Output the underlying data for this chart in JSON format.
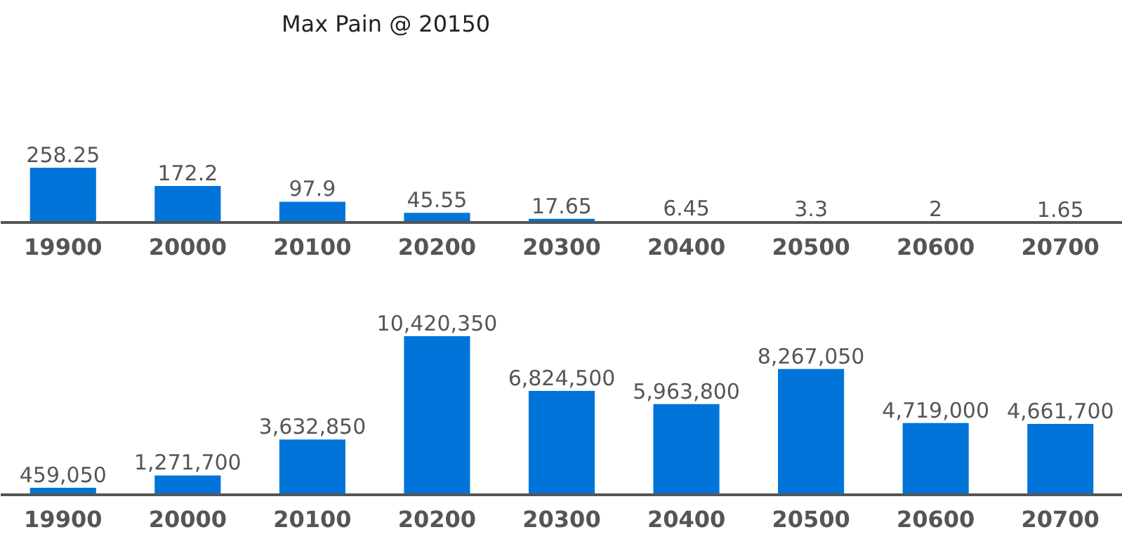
{
  "chart_data": [
    {
      "type": "bar",
      "title": "Max Pain @ 20150",
      "categories": [
        "19900",
        "20000",
        "20100",
        "20200",
        "20300",
        "20400",
        "20500",
        "20600",
        "20700"
      ],
      "values": [
        258.25,
        172.2,
        97.9,
        45.55,
        17.65,
        6.45,
        3.3,
        2,
        1.65
      ],
      "color": "#0074d9",
      "data_labels": true
    },
    {
      "type": "bar",
      "categories": [
        "19900",
        "20000",
        "20100",
        "20200",
        "20300",
        "20400",
        "20500",
        "20600",
        "20700"
      ],
      "values": [
        459050,
        1271700,
        3632850,
        10420350,
        6824500,
        5963800,
        8267050,
        4719000,
        4661700
      ],
      "color": "#0074d9",
      "value_labels": [
        "459,050",
        "1,271,700",
        "3,632,850",
        "10,420,350",
        "6,824,500",
        "5,963,800",
        "8,267,050",
        "4,719,000",
        "4,661,700"
      ]
    }
  ]
}
